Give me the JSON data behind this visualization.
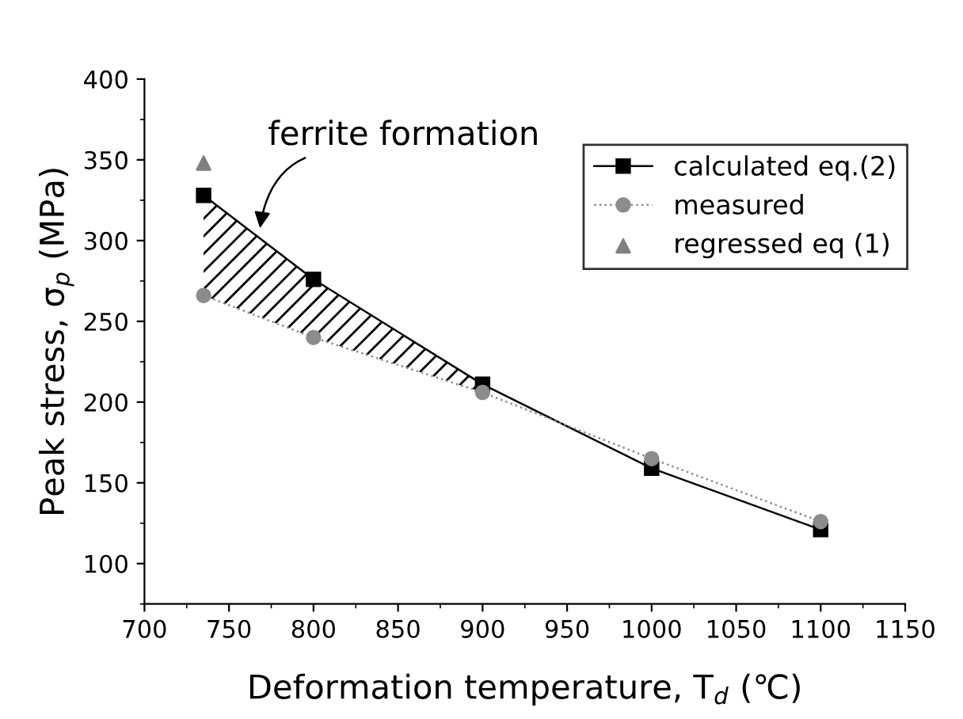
{
  "chart_data": {
    "type": "line",
    "xlabel": "Deformation temperature, T$_{d}$ (℃)",
    "ylabel": "Peak stress, σ$_{p}$ (MPa)",
    "x": [
      735,
      800,
      900,
      1000,
      1100
    ],
    "series": [
      {
        "name": "calculated eq.(2)",
        "color": "#000000",
        "marker": "square",
        "line_style": "solid",
        "values": [
          328,
          276,
          211,
          159,
          121
        ],
        "lower": [
          266,
          240,
          206,
          null,
          null
        ],
        "upper": [
          328,
          276,
          211,
          null,
          null
        ]
      },
      {
        "name": "measured",
        "color": "#8c8c8c",
        "marker": "circle",
        "line_style": "dotted",
        "values": [
          266,
          240,
          206,
          165,
          126
        ]
      },
      {
        "name": "regressed eq (1)",
        "type": "scatter",
        "color": "#808080",
        "marker": "triangle",
        "x": [
          735
        ],
        "values": [
          348
        ]
      }
    ],
    "annotations": [
      {
        "text": "ferrite formation",
        "x": 768,
        "y": 305
      }
    ],
    "xlim": [
      700,
      1150
    ],
    "xticks": [
      700,
      750,
      800,
      850,
      900,
      950,
      1000,
      1050,
      1100,
      1150
    ],
    "ylim": [
      75,
      400
    ],
    "yticks": [
      100,
      150,
      200,
      250,
      300,
      350,
      400
    ],
    "grid": false,
    "legend": "top right"
  }
}
